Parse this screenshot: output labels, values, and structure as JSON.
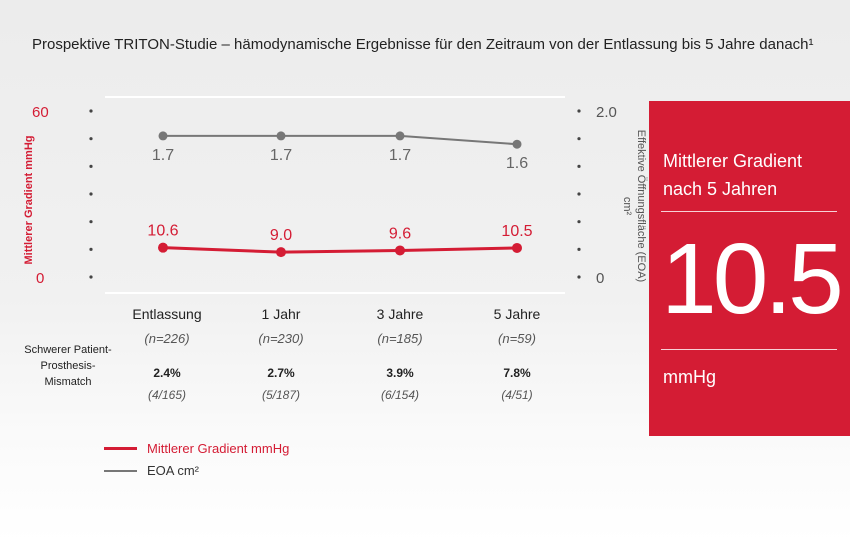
{
  "title": "Prospektive TRITON-Studie – hämodynamische Ergebnisse für den Zeitraum von der Entlassung bis 5 Jahre danach¹",
  "chart_data": {
    "type": "line",
    "categories": [
      "Entlassung",
      "1 Jahr",
      "3 Jahre",
      "5 Jahre"
    ],
    "series": [
      {
        "name": "Mittlerer Gradient mmHg",
        "axis": "left",
        "color": "#d41c34",
        "values": [
          10.6,
          9.0,
          9.6,
          10.5
        ],
        "labels": [
          "10.6",
          "9.0",
          "9.6",
          "10.5"
        ]
      },
      {
        "name": "EOA cm²",
        "axis": "right",
        "color": "#777777",
        "values": [
          1.7,
          1.7,
          1.7,
          1.6
        ],
        "labels": [
          "1.7",
          "1.7",
          "1.7",
          "1.6"
        ]
      }
    ],
    "ylabel_left": "Mittlerer Gradient mmHg",
    "ylabel_right": "Effektive Öffnungsfläche (EOA) cm²",
    "ylim_left": [
      0,
      60
    ],
    "ylim_right": [
      0,
      2.0
    ],
    "left_ticks": [
      "60",
      "0"
    ],
    "right_ticks": [
      "2.0",
      "0"
    ]
  },
  "table": {
    "row_label": "Schwerer Patient-Prosthesis-Mismatch",
    "n_counts": [
      "(n=226)",
      "(n=230)",
      "(n=185)",
      "(n=59)"
    ],
    "ppm_percent": [
      "2.4%",
      "2.7%",
      "3.9%",
      "7.8%"
    ],
    "ppm_fraction": [
      "(4/165)",
      "(5/187)",
      "(6/154)",
      "(4/51)"
    ]
  },
  "legend": {
    "red_label": "Mittlerer Gradient mmHg",
    "gray_label": "EOA cm²"
  },
  "panel": {
    "title": "Mittlerer Gradient nach 5 Jahren",
    "value": "10.5",
    "unit": "mmHg"
  },
  "colors": {
    "accent": "#d41c34",
    "gray_line": "#777777",
    "panel_bg": "#d41c34"
  }
}
